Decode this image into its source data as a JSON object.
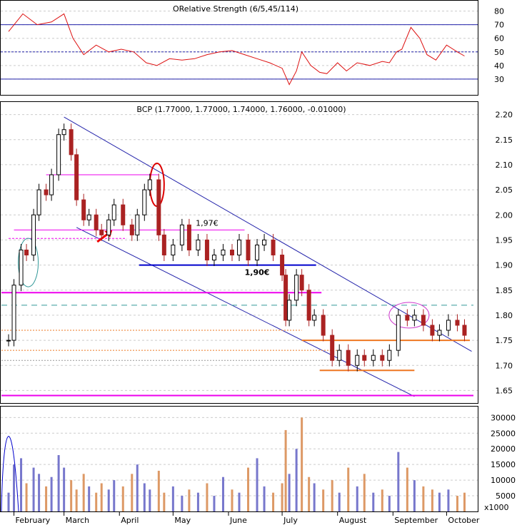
{
  "chart_data": [
    {
      "panel": "rsi",
      "type": "line",
      "title": "ORelative Strength (6/5,45/114)",
      "ylim": [
        20,
        85
      ],
      "yticks": [
        30,
        40,
        50,
        60,
        70,
        80
      ],
      "reference_lines": [
        30,
        50,
        70
      ],
      "series": [
        {
          "color": "#dd1111",
          "x": [
            "2013-01-29",
            "2013-02-06",
            "2013-02-14",
            "2013-02-22",
            "2013-03-01",
            "2013-03-06",
            "2013-03-12",
            "2013-03-19",
            "2013-03-26",
            "2013-04-02",
            "2013-04-09",
            "2013-04-16",
            "2013-04-22",
            "2013-04-29",
            "2013-05-06",
            "2013-05-13",
            "2013-05-20",
            "2013-05-27",
            "2013-06-03",
            "2013-06-10",
            "2013-06-17",
            "2013-06-24",
            "2013-07-01",
            "2013-07-05",
            "2013-07-09",
            "2013-07-12",
            "2013-07-17",
            "2013-07-22",
            "2013-07-26",
            "2013-08-01",
            "2013-08-06",
            "2013-08-12",
            "2013-08-19",
            "2013-08-26",
            "2013-08-30",
            "2013-09-03",
            "2013-09-06",
            "2013-09-11",
            "2013-09-16",
            "2013-09-20",
            "2013-09-25",
            "2013-10-01",
            "2013-10-07",
            "2013-10-11"
          ],
          "values": [
            65,
            78,
            70,
            72,
            78,
            60,
            48,
            55,
            50,
            52,
            50,
            42,
            40,
            45,
            44,
            45,
            48,
            50,
            51,
            48,
            45,
            42,
            38,
            26,
            36,
            50,
            40,
            35,
            34,
            42,
            36,
            42,
            40,
            43,
            42,
            50,
            52,
            68,
            60,
            48,
            44,
            55,
            50,
            47
          ]
        }
      ]
    },
    {
      "panel": "price",
      "type": "candlestick",
      "title": "BCP (1.77000, 1.77000, 1.74000, 1.76000, -0.01000)",
      "ylim": [
        1.625,
        2.225
      ],
      "yticks": [
        "1.65",
        "1.70",
        "1.75",
        "1.80",
        "1.85",
        "1.90",
        "1.95",
        "2.00",
        "2.05",
        "2.10",
        "2.15",
        "2.20"
      ],
      "series": [
        {
          "name": "close",
          "color": "#000000",
          "x": [
            "2013-01-29",
            "2013-02-01",
            "2013-02-05",
            "2013-02-08",
            "2013-02-12",
            "2013-02-15",
            "2013-02-19",
            "2013-02-22",
            "2013-02-26",
            "2013-03-01",
            "2013-03-05",
            "2013-03-08",
            "2013-03-12",
            "2013-03-15",
            "2013-03-19",
            "2013-03-22",
            "2013-03-26",
            "2013-03-29",
            "2013-04-03",
            "2013-04-08",
            "2013-04-11",
            "2013-04-15",
            "2013-04-18",
            "2013-04-23",
            "2013-04-26",
            "2013-05-01",
            "2013-05-06",
            "2013-05-10",
            "2013-05-15",
            "2013-05-20",
            "2013-05-24",
            "2013-05-29",
            "2013-06-03",
            "2013-06-07",
            "2013-06-12",
            "2013-06-17",
            "2013-06-21",
            "2013-06-26",
            "2013-07-01",
            "2013-07-03",
            "2013-07-05",
            "2013-07-09",
            "2013-07-12",
            "2013-07-16",
            "2013-07-19",
            "2013-07-24",
            "2013-07-29",
            "2013-08-02",
            "2013-08-07",
            "2013-08-12",
            "2013-08-16",
            "2013-08-21",
            "2013-08-26",
            "2013-08-30",
            "2013-09-04",
            "2013-09-09",
            "2013-09-13",
            "2013-09-18",
            "2013-09-23",
            "2013-09-27",
            "2013-10-02",
            "2013-10-07",
            "2013-10-11"
          ],
          "values": [
            1.75,
            1.86,
            1.93,
            1.92,
            2.0,
            2.05,
            2.04,
            2.08,
            2.16,
            2.17,
            2.12,
            2.03,
            1.99,
            2.0,
            1.97,
            1.96,
            1.99,
            2.02,
            1.98,
            1.96,
            2.0,
            2.05,
            2.07,
            1.96,
            1.92,
            1.94,
            1.98,
            1.93,
            1.95,
            1.91,
            1.92,
            1.93,
            1.92,
            1.95,
            1.91,
            1.94,
            1.95,
            1.92,
            1.88,
            1.79,
            1.83,
            1.88,
            1.85,
            1.79,
            1.8,
            1.76,
            1.71,
            1.73,
            1.7,
            1.72,
            1.71,
            1.72,
            1.71,
            1.73,
            1.8,
            1.79,
            1.8,
            1.78,
            1.76,
            1.77,
            1.79,
            1.78,
            1.76
          ]
        }
      ],
      "annotations": [
        {
          "text": "1,97€",
          "color": "#cc33cc",
          "x": "2013-05-20",
          "y": 1.97
        },
        {
          "text": "1,90€",
          "color": "#0000cc",
          "x": "2013-06-17",
          "y": 1.9
        }
      ]
    },
    {
      "panel": "volume",
      "type": "bar",
      "unit_label": "x1000",
      "ylim": [
        0,
        33500
      ],
      "yticks": [
        5000,
        10000,
        15000,
        20000,
        25000,
        30000
      ],
      "series": [
        {
          "color": "#7777cc",
          "x": [
            "2013-01-29",
            "2013-02-01",
            "2013-02-05",
            "2013-02-08",
            "2013-02-12",
            "2013-02-15",
            "2013-02-19",
            "2013-02-22",
            "2013-02-26",
            "2013-03-01",
            "2013-03-05",
            "2013-03-08",
            "2013-03-12",
            "2013-03-15",
            "2013-03-19",
            "2013-03-22",
            "2013-03-26",
            "2013-03-29",
            "2013-04-03",
            "2013-04-08",
            "2013-04-11",
            "2013-04-15",
            "2013-04-18",
            "2013-04-23",
            "2013-04-26",
            "2013-05-01",
            "2013-05-06",
            "2013-05-10",
            "2013-05-15",
            "2013-05-20",
            "2013-05-24",
            "2013-05-29",
            "2013-06-03",
            "2013-06-07",
            "2013-06-12",
            "2013-06-17",
            "2013-06-21",
            "2013-06-26",
            "2013-07-01",
            "2013-07-03",
            "2013-07-05",
            "2013-07-09",
            "2013-07-12",
            "2013-07-16",
            "2013-07-19",
            "2013-07-24",
            "2013-07-29",
            "2013-08-02",
            "2013-08-07",
            "2013-08-12",
            "2013-08-16",
            "2013-08-21",
            "2013-08-26",
            "2013-08-30",
            "2013-09-04",
            "2013-09-09",
            "2013-09-13",
            "2013-09-18",
            "2013-09-23",
            "2013-09-27",
            "2013-10-02",
            "2013-10-07",
            "2013-10-11"
          ],
          "values": [
            6000,
            15000,
            17000,
            9000,
            14000,
            12000,
            8000,
            11000,
            18000,
            14000,
            10000,
            7000,
            12000,
            8000,
            6000,
            9000,
            7000,
            10000,
            8000,
            12000,
            15000,
            9000,
            7000,
            13000,
            6000,
            8000,
            5000,
            7000,
            6000,
            9000,
            5000,
            11000,
            7000,
            6000,
            14000,
            17000,
            8000,
            6000,
            9000,
            26000,
            12000,
            20000,
            30000,
            11000,
            9000,
            7000,
            10000,
            6000,
            14000,
            8000,
            12000,
            6000,
            7000,
            5000,
            19000,
            14000,
            10000,
            8000,
            7000,
            6000,
            7000,
            5000,
            6000
          ]
        }
      ]
    }
  ],
  "xaxis": {
    "months": [
      "February",
      "March",
      "April",
      "May",
      "June",
      "July",
      "August",
      "September",
      "October"
    ]
  },
  "colors": {
    "rsi_line": "#dd1111",
    "channel": "#2222aa",
    "magenta": "#ee00ee",
    "orange": "#ee7722",
    "teal": "#339999",
    "candle_red": "#aa2222",
    "volume_blue": "#7777cc",
    "volume_orange": "#dd9966"
  }
}
